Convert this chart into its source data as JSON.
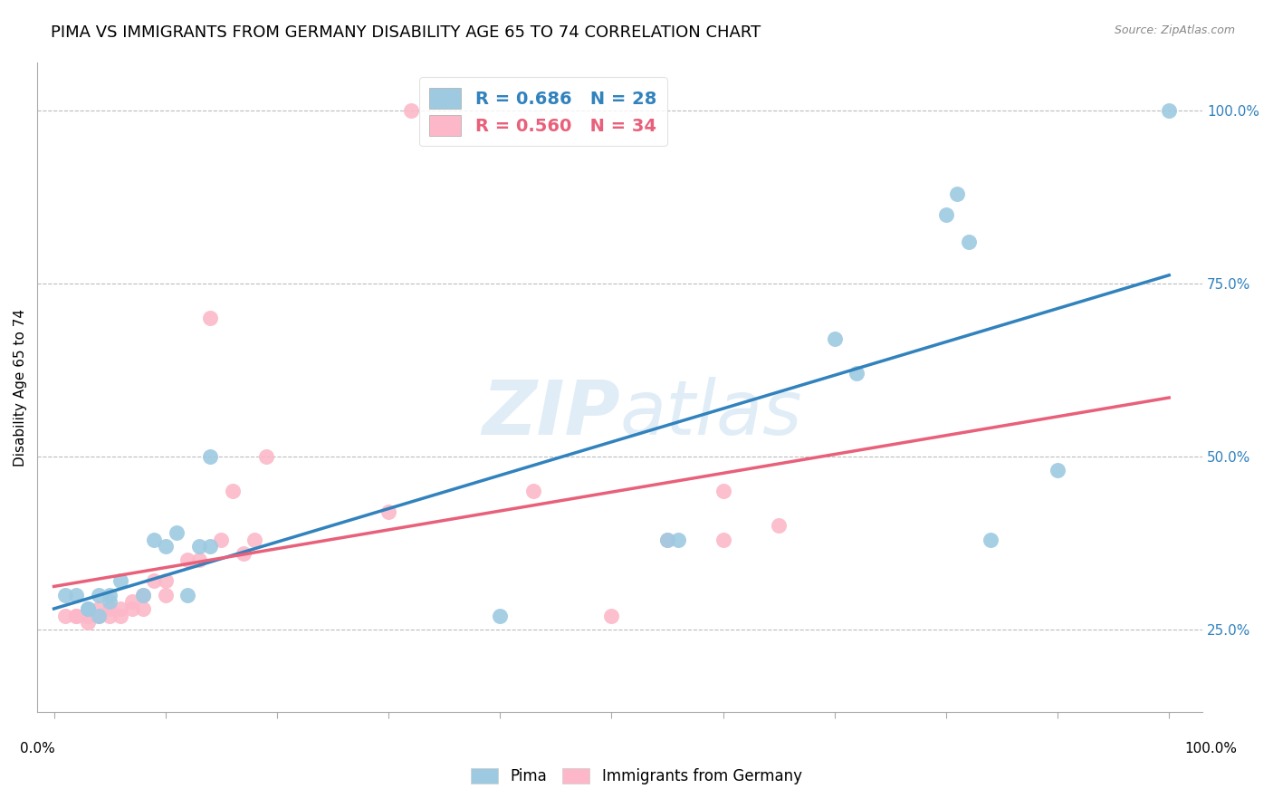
{
  "title": "PIMA VS IMMIGRANTS FROM GERMANY DISABILITY AGE 65 TO 74 CORRELATION CHART",
  "source": "Source: ZipAtlas.com",
  "ylabel": "Disability Age 65 to 74",
  "watermark": "ZIPatlas",
  "pima_R": 0.686,
  "pima_N": 28,
  "germany_R": 0.56,
  "germany_N": 34,
  "pima_color": "#9ecae1",
  "germany_color": "#fcb8c8",
  "pima_line_color": "#3182bd",
  "germany_line_color": "#e8607a",
  "pima_x": [
    0.01,
    0.02,
    0.03,
    0.03,
    0.04,
    0.04,
    0.05,
    0.05,
    0.06,
    0.08,
    0.09,
    0.1,
    0.11,
    0.12,
    0.13,
    0.14,
    0.14,
    0.4,
    0.55,
    0.56,
    0.7,
    0.72,
    0.8,
    0.81,
    0.82,
    0.84,
    0.9,
    1.0
  ],
  "pima_y": [
    0.3,
    0.3,
    0.28,
    0.28,
    0.27,
    0.3,
    0.29,
    0.3,
    0.32,
    0.3,
    0.38,
    0.37,
    0.39,
    0.3,
    0.37,
    0.5,
    0.37,
    0.27,
    0.38,
    0.38,
    0.67,
    0.62,
    0.85,
    0.88,
    0.81,
    0.38,
    0.48,
    1.0
  ],
  "germany_x": [
    0.01,
    0.02,
    0.02,
    0.03,
    0.03,
    0.04,
    0.04,
    0.05,
    0.05,
    0.06,
    0.06,
    0.07,
    0.07,
    0.08,
    0.08,
    0.09,
    0.1,
    0.1,
    0.12,
    0.13,
    0.14,
    0.15,
    0.16,
    0.17,
    0.18,
    0.19,
    0.3,
    0.32,
    0.43,
    0.5,
    0.55,
    0.6,
    0.6,
    0.65
  ],
  "germany_y": [
    0.27,
    0.27,
    0.27,
    0.26,
    0.27,
    0.27,
    0.28,
    0.27,
    0.28,
    0.27,
    0.28,
    0.28,
    0.29,
    0.28,
    0.3,
    0.32,
    0.3,
    0.32,
    0.35,
    0.35,
    0.7,
    0.38,
    0.45,
    0.36,
    0.38,
    0.5,
    0.42,
    1.0,
    0.45,
    0.27,
    0.38,
    0.38,
    0.45,
    0.4
  ],
  "yticks": [
    0.25,
    0.5,
    0.75,
    1.0
  ],
  "ytick_labels": [
    "25.0%",
    "50.0%",
    "75.0%",
    "100.0%"
  ],
  "title_fontsize": 13,
  "label_fontsize": 11,
  "tick_fontsize": 11
}
